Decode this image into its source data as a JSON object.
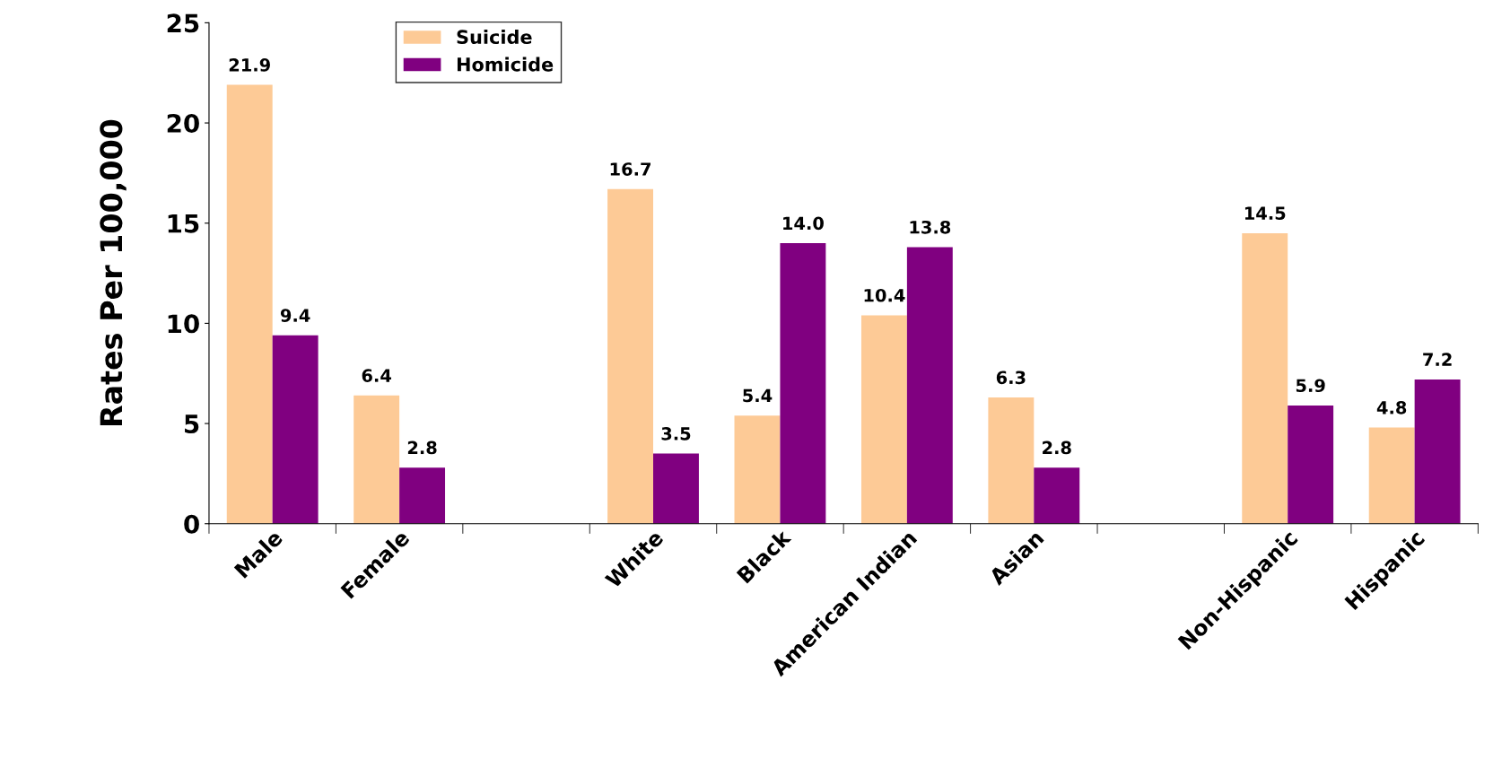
{
  "chart_data": {
    "type": "bar",
    "ylabel": "Rates Per 100,000",
    "categories": [
      "Male",
      "Female",
      null,
      "White",
      "Black",
      "American Indian",
      "Asian",
      null,
      "Non-Hispanic",
      "Hispanic"
    ],
    "series": [
      {
        "name": "Suicide",
        "color": "#fdca96",
        "values": [
          21.9,
          6.4,
          null,
          16.7,
          5.4,
          10.4,
          6.3,
          null,
          14.5,
          4.8
        ],
        "value_labels": [
          "21.9",
          "6.4",
          null,
          "16.7",
          "5.4",
          "10.4",
          "6.3",
          null,
          "14.5",
          "4.8"
        ]
      },
      {
        "name": "Homicide",
        "color": "#800080",
        "values": [
          9.4,
          2.8,
          null,
          3.5,
          14.0,
          13.8,
          2.8,
          null,
          5.9,
          7.2
        ],
        "value_labels": [
          "9.4",
          "2.8",
          null,
          "3.5",
          "14.0",
          "13.8",
          "2.8",
          null,
          "5.9",
          "7.2"
        ]
      }
    ],
    "ylim": [
      0,
      25
    ],
    "yticks": [
      0,
      5,
      10,
      15,
      20,
      25
    ],
    "grid": false,
    "legend": "top left"
  }
}
